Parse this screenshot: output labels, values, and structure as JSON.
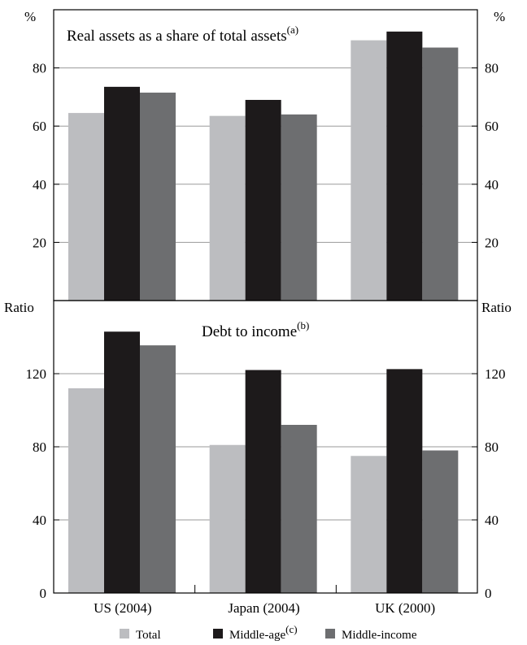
{
  "chart_data": [
    {
      "type": "bar",
      "title": "Real assets as a share of total assets",
      "title_note": "(a)",
      "unit_left": "%",
      "unit_right": "%",
      "categories": [
        "US (2004)",
        "Japan (2004)",
        "UK (2000)"
      ],
      "series": [
        {
          "name": "Total",
          "values": [
            64.5,
            63.5,
            89.5
          ]
        },
        {
          "name": "Middle-age",
          "values": [
            73.5,
            69.0,
            92.5
          ]
        },
        {
          "name": "Middle-income",
          "values": [
            71.5,
            64.0,
            87.0
          ]
        }
      ],
      "ylim": [
        0,
        100
      ],
      "yticks": [
        20,
        40,
        60,
        80
      ],
      "grid": true
    },
    {
      "type": "bar",
      "title": "Debt to income",
      "title_note": "(b)",
      "unit_left": "Ratio",
      "unit_right": "Ratio",
      "categories": [
        "US (2004)",
        "Japan (2004)",
        "UK (2000)"
      ],
      "series": [
        {
          "name": "Total",
          "values": [
            112,
            81,
            75
          ]
        },
        {
          "name": "Middle-age",
          "values": [
            143,
            122,
            122.5
          ]
        },
        {
          "name": "Middle-income",
          "values": [
            135.5,
            92,
            78
          ]
        }
      ],
      "ylim": [
        0,
        160
      ],
      "yticks": [
        0,
        40,
        80,
        120
      ],
      "grid": true
    }
  ],
  "categories": [
    "US (2004)",
    "Japan (2004)",
    "UK (2000)"
  ],
  "legend": {
    "items": [
      {
        "label": "Total",
        "note": "",
        "color": "#bcbdc0"
      },
      {
        "label": "Middle-age",
        "note": "(c)",
        "color": "#1d1a1b"
      },
      {
        "label": "Middle-income",
        "note": "",
        "color": "#6d6e70"
      }
    ]
  }
}
